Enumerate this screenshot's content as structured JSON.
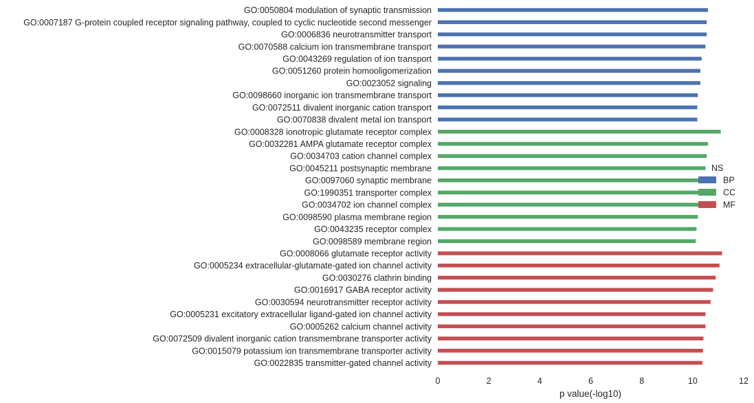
{
  "chart_data": {
    "type": "bar",
    "orientation": "horizontal",
    "xlabel": "p value(-log10)",
    "xlim": [
      0,
      12
    ],
    "xticks": [
      0,
      2,
      4,
      6,
      8,
      10,
      12
    ],
    "grid": false,
    "legend": {
      "title": "NS",
      "placement": "right",
      "entries": [
        {
          "name": "BP",
          "color": "#4c72b0"
        },
        {
          "name": "CC",
          "color": "#55a868"
        },
        {
          "name": "MF",
          "color": "#c44e52"
        }
      ]
    },
    "categories": [
      "GO:0050804 modulation of synaptic transmission",
      "GO:0007187 G-protein coupled receptor signaling pathway, coupled to cyclic nucleotide second messenger",
      "GO:0006836 neurotransmitter transport",
      "GO:0070588 calcium ion transmembrane transport",
      "GO:0043269 regulation of ion transport",
      "GO:0051260 protein homooligomerization",
      "GO:0023052 signaling",
      "GO:0098660 inorganic ion transmembrane transport",
      "GO:0072511 divalent inorganic cation transport",
      "GO:0070838 divalent metal ion transport",
      "GO:0008328 ionotropic glutamate receptor complex",
      "GO:0032281 AMPA glutamate receptor complex",
      "GO:0034703 cation channel complex",
      "GO:0045211 postsynaptic membrane",
      "GO:0097060 synaptic membrane",
      "GO:1990351 transporter complex",
      "GO:0034702 ion channel complex",
      "GO:0098590 plasma membrane region",
      "GO:0043235 receptor complex",
      "GO:0098589 membrane region",
      "GO:0008066 glutamate receptor activity",
      "GO:0005234 extracellular-glutamate-gated ion channel activity",
      "GO:0030276 clathrin binding",
      "GO:0016917 GABA receptor activity",
      "GO:0030594 neurotransmitter receptor activity",
      "GO:0005231 excitatory extracellular ligand-gated ion channel activity",
      "GO:0005262 calcium channel activity",
      "GO:0072509 divalent inorganic cation transmembrane transporter activity",
      "GO:0015079 potassium ion transmembrane transporter activity",
      "GO:0022835 transmitter-gated channel activity"
    ],
    "groups": [
      "BP",
      "BP",
      "BP",
      "BP",
      "BP",
      "BP",
      "BP",
      "BP",
      "BP",
      "BP",
      "CC",
      "CC",
      "CC",
      "CC",
      "CC",
      "CC",
      "CC",
      "CC",
      "CC",
      "CC",
      "MF",
      "MF",
      "MF",
      "MF",
      "MF",
      "MF",
      "MF",
      "MF",
      "MF",
      "MF"
    ],
    "values": [
      10.6,
      10.55,
      10.55,
      10.5,
      10.35,
      10.3,
      10.3,
      10.2,
      10.18,
      10.18,
      11.1,
      10.6,
      10.55,
      10.5,
      10.45,
      10.25,
      10.22,
      10.2,
      10.15,
      10.12,
      11.15,
      11.05,
      10.9,
      10.8,
      10.7,
      10.5,
      10.5,
      10.42,
      10.4,
      10.38
    ]
  }
}
